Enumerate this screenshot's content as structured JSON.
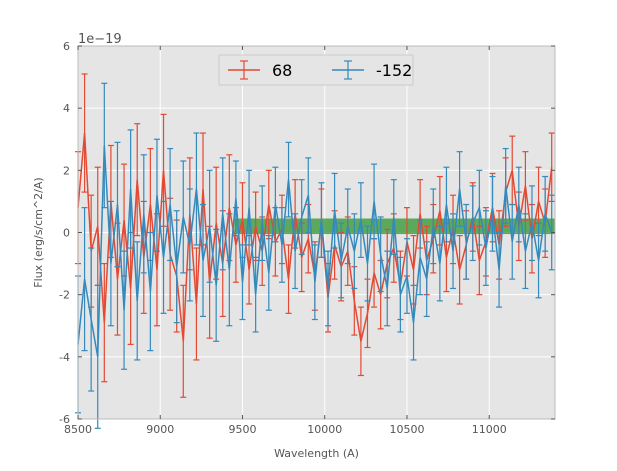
{
  "chart_data": {
    "type": "line",
    "title": "",
    "xlabel": "Wavelength (A)",
    "ylabel": "Flux (erg/s/cm^2/A)",
    "offset_text": "1e−19",
    "xlim": [
      8500,
      11400
    ],
    "ylim": [
      -6,
      6
    ],
    "xticks": [
      8500,
      9000,
      9500,
      10000,
      10500,
      11000
    ],
    "yticks": [
      -6,
      -4,
      -2,
      0,
      2,
      4,
      6
    ],
    "grid": true,
    "legend_position": "top-center",
    "band": {
      "x": [
        9450,
        11400
      ],
      "y": [
        -0.05,
        0.45
      ],
      "color": "#3a9a3a"
    },
    "series": [
      {
        "name": "68",
        "color": "#e24a33",
        "x": [
          8500,
          8540,
          8580,
          8620,
          8660,
          8700,
          8740,
          8780,
          8820,
          8860,
          8900,
          8940,
          8980,
          9020,
          9060,
          9100,
          9140,
          9180,
          9220,
          9260,
          9300,
          9340,
          9380,
          9420,
          9460,
          9500,
          9540,
          9580,
          9620,
          9660,
          9700,
          9740,
          9780,
          9820,
          9860,
          9900,
          9940,
          9980,
          10020,
          10060,
          10100,
          10140,
          10180,
          10220,
          10260,
          10300,
          10340,
          10380,
          10420,
          10460,
          10500,
          10540,
          10580,
          10620,
          10660,
          10700,
          10740,
          10780,
          10820,
          10860,
          10900,
          10940,
          10980,
          11020,
          11060,
          11100,
          11140,
          11180,
          11220,
          11260,
          11300,
          11340,
          11380
        ],
        "y": [
          0.8,
          3.2,
          -0.6,
          0.2,
          -2.9,
          1.0,
          -1.5,
          0.4,
          -1.8,
          1.7,
          -0.8,
          0.9,
          -1.2,
          2.0,
          -0.7,
          -1.4,
          -3.5,
          0.6,
          -2.3,
          1.4,
          -1.6,
          0.3,
          -1.0,
          0.8,
          -0.4,
          0.4,
          -1.2,
          0.2,
          -0.6,
          0.9,
          -0.3,
          0.1,
          -1.5,
          0.6,
          -0.8,
          -0.2,
          -1.4,
          0.3,
          -2.1,
          -0.4,
          -1.1,
          -0.6,
          -2.2,
          -3.5,
          -2.6,
          -1.3,
          -2.0,
          -1.0,
          -0.5,
          -1.7,
          -0.3,
          -1.2,
          0.6,
          -0.9,
          -0.2,
          0.7,
          -0.8,
          0.1,
          -1.2,
          -0.4,
          0.5,
          -0.9,
          -0.3,
          0.8,
          -0.4,
          1.3,
          2.0,
          0.2,
          1.5,
          -0.2,
          1.0,
          0.3,
          2.1
        ],
        "yerr": [
          1.8,
          1.9,
          1.8,
          1.9,
          1.9,
          1.8,
          1.8,
          1.8,
          1.8,
          1.8,
          1.8,
          1.8,
          1.8,
          1.8,
          1.8,
          1.8,
          1.8,
          1.8,
          1.8,
          1.8,
          1.8,
          1.8,
          1.7,
          1.7,
          1.2,
          1.2,
          1.1,
          1.1,
          1.1,
          1.1,
          1.1,
          1.1,
          1.1,
          1.1,
          1.1,
          1.1,
          1.1,
          1.1,
          1.1,
          1.1,
          1.1,
          1.1,
          1.1,
          1.1,
          1.1,
          1.1,
          1.1,
          1.1,
          1.1,
          1.1,
          1.1,
          1.1,
          1.1,
          1.1,
          1.1,
          1.1,
          1.1,
          1.1,
          1.1,
          1.1,
          1.1,
          1.1,
          1.1,
          1.1,
          1.1,
          1.1,
          1.1,
          1.1,
          1.1,
          1.1,
          1.1,
          1.1,
          1.1
        ]
      },
      {
        "name": "-152",
        "color": "#348abd",
        "x": [
          8500,
          8540,
          8580,
          8620,
          8660,
          8700,
          8740,
          8780,
          8820,
          8860,
          8900,
          8940,
          8980,
          9020,
          9060,
          9100,
          9140,
          9180,
          9220,
          9260,
          9300,
          9340,
          9380,
          9420,
          9460,
          9500,
          9540,
          9580,
          9620,
          9660,
          9700,
          9740,
          9780,
          9820,
          9860,
          9900,
          9940,
          9980,
          10020,
          10060,
          10100,
          10140,
          10180,
          10220,
          10260,
          10300,
          10340,
          10380,
          10420,
          10460,
          10500,
          10540,
          10580,
          10620,
          10660,
          10700,
          10740,
          10780,
          10820,
          10860,
          10900,
          10940,
          10980,
          11020,
          11060,
          11100,
          11140,
          11180,
          11220,
          11260,
          11300,
          11340,
          11380
        ],
        "y": [
          -3.6,
          -1.5,
          -2.8,
          -4.0,
          2.8,
          -1.0,
          0.9,
          -2.5,
          1.4,
          -2.2,
          0.6,
          -1.9,
          1.2,
          -0.8,
          0.9,
          -1.1,
          0.5,
          -0.4,
          1.4,
          -0.9,
          0.2,
          -1.7,
          0.6,
          -1.2,
          1.1,
          -1.6,
          0.8,
          -2.0,
          0.3,
          -1.3,
          0.9,
          -0.4,
          1.7,
          -0.6,
          0.5,
          1.2,
          -1.6,
          0.4,
          -1.8,
          0.7,
          -0.9,
          0.2,
          -0.6,
          0.4,
          -1.0,
          1.0,
          -0.7,
          -1.8,
          0.5,
          -2.0,
          -1.4,
          -2.9,
          -0.8,
          -1.5,
          0.2,
          -1.0,
          0.9,
          -0.6,
          1.4,
          -0.3,
          0.3,
          0.8,
          -0.5,
          0.6,
          -1.2,
          1.5,
          -0.3,
          0.9,
          -0.6,
          0.3,
          -0.9,
          0.6,
          0.0
        ],
        "yerr": [
          2.2,
          2.3,
          2.3,
          2.3,
          2.0,
          2.0,
          2.0,
          1.9,
          1.9,
          1.9,
          1.9,
          1.9,
          1.8,
          1.8,
          1.8,
          1.8,
          1.8,
          1.8,
          1.8,
          1.8,
          1.8,
          1.8,
          1.8,
          1.8,
          1.2,
          1.2,
          1.2,
          1.2,
          1.2,
          1.2,
          1.2,
          1.2,
          1.2,
          1.2,
          1.2,
          1.2,
          1.2,
          1.2,
          1.2,
          1.2,
          1.2,
          1.2,
          1.2,
          1.2,
          1.2,
          1.2,
          1.2,
          1.2,
          1.2,
          1.2,
          1.2,
          1.2,
          1.2,
          1.2,
          1.2,
          1.2,
          1.2,
          1.2,
          1.2,
          1.2,
          1.2,
          1.2,
          1.2,
          1.2,
          1.2,
          1.2,
          1.2,
          1.2,
          1.2,
          1.2,
          1.2,
          1.2,
          1.2
        ]
      }
    ]
  }
}
